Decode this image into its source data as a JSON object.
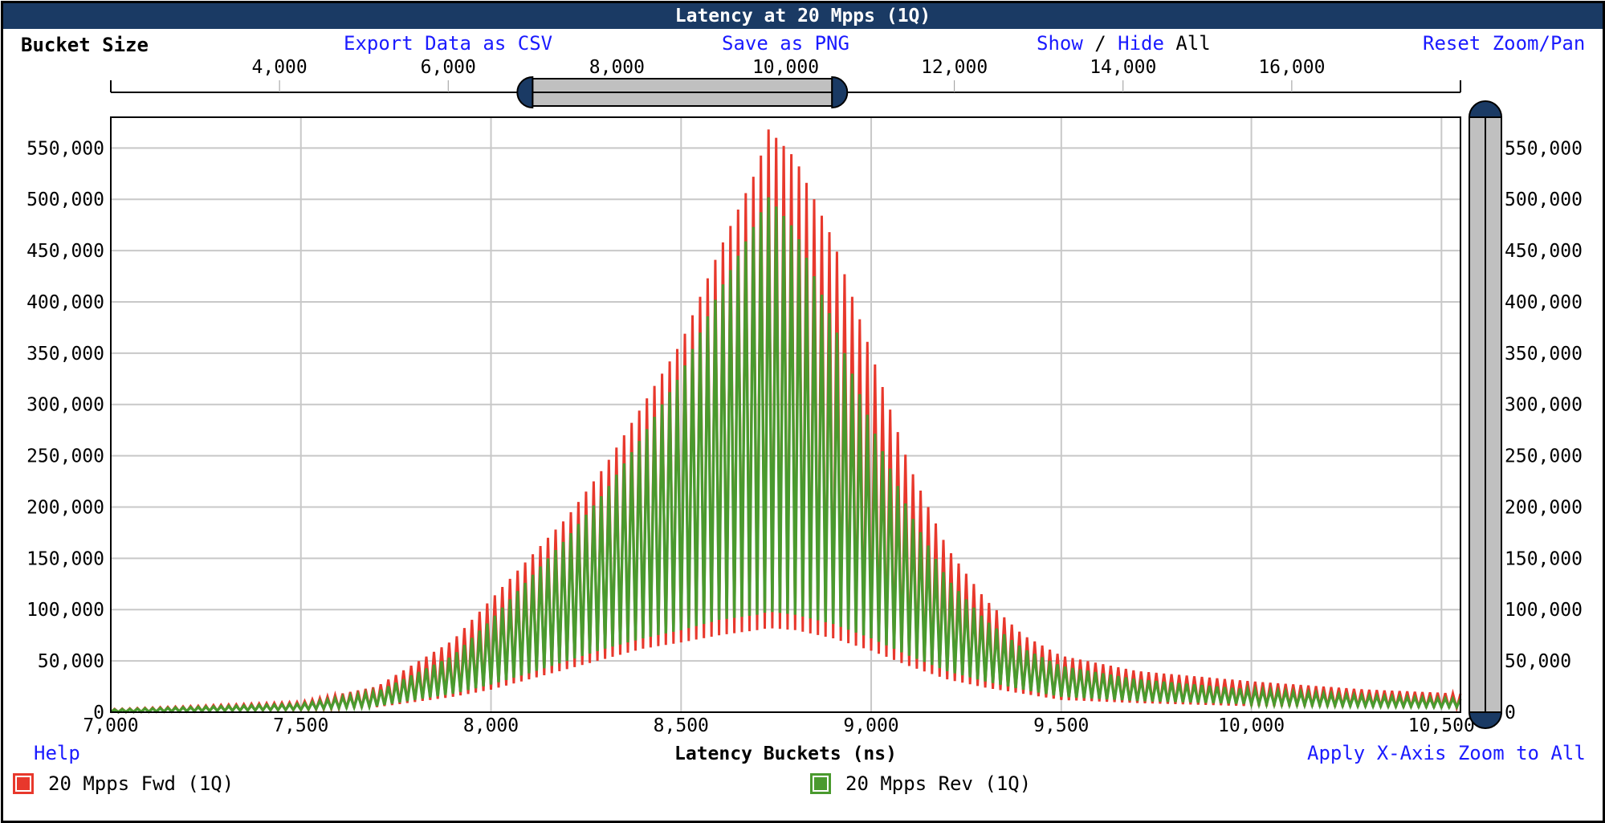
{
  "title": "Latency at 20 Mpps (1Q)",
  "toolbar": {
    "bucket_size_label": "Bucket Size",
    "export_csv": "Export Data as CSV",
    "save_png": "Save as PNG",
    "show": "Show",
    "slash": "/",
    "hide": "Hide",
    "all": "All",
    "reset_zoom": "Reset Zoom/Pan"
  },
  "footer": {
    "help": "Help",
    "apply_zoom": "Apply X-Axis Zoom to All"
  },
  "colors": {
    "title_bg": "#1a3a64",
    "fwd": "#e8382c",
    "rev": "#4a9a2e",
    "grid": "#c8c8c8",
    "handle": "#1a3a64",
    "slider": "#c0c0c0"
  },
  "chart_data": {
    "type": "area",
    "xlabel": "Latency Buckets (ns)",
    "ylabel": "",
    "xlim": [
      7000,
      10550
    ],
    "ylim": [
      0,
      580000
    ],
    "x_ticks": [
      7000,
      7500,
      8000,
      8500,
      9000,
      9500,
      10000,
      10500
    ],
    "x_tick_labels": [
      "7,000",
      "7,500",
      "8,000",
      "8,500",
      "9,000",
      "9,500",
      "10,000",
      "10,500"
    ],
    "y_ticks": [
      0,
      50000,
      100000,
      150000,
      200000,
      250000,
      300000,
      350000,
      400000,
      450000,
      500000,
      550000
    ],
    "y_tick_labels": [
      "0",
      "50,000",
      "100,000",
      "150,000",
      "200,000",
      "250,000",
      "300,000",
      "350,000",
      "400,000",
      "450,000",
      "500,000",
      "550,000"
    ],
    "grid": true,
    "legend_position": "bottom",
    "peak_x": 8730,
    "oscillation_period_ns": 20,
    "series": [
      {
        "name": "20 Mpps Fwd (1Q)",
        "envelope_x": [
          7000,
          7500,
          7700,
          7900,
          8000,
          8100,
          8200,
          8300,
          8400,
          8500,
          8600,
          8700,
          8730,
          8800,
          8900,
          9000,
          9100,
          9200,
          9300,
          9400,
          9500,
          9700,
          10000,
          10300,
          10550
        ],
        "envelope_max": [
          3000,
          10000,
          25000,
          70000,
          110000,
          150000,
          190000,
          240000,
          300000,
          360000,
          450000,
          530000,
          568000,
          540000,
          460000,
          350000,
          240000,
          160000,
          110000,
          75000,
          55000,
          40000,
          30000,
          22000,
          18000
        ],
        "envelope_min": [
          0,
          2000,
          5000,
          15000,
          22000,
          32000,
          42000,
          52000,
          62000,
          68000,
          75000,
          80000,
          82000,
          80000,
          72000,
          60000,
          45000,
          32000,
          24000,
          18000,
          12000,
          9000,
          6000,
          5000,
          4000
        ]
      },
      {
        "name": "20 Mpps Rev (1Q)",
        "envelope_x": [
          7000,
          7500,
          7700,
          7900,
          8000,
          8100,
          8200,
          8300,
          8400,
          8500,
          8600,
          8700,
          8730,
          8800,
          8900,
          9000,
          9100,
          9200,
          9300,
          9400,
          9500,
          9700,
          10000,
          10300,
          10550
        ],
        "envelope_max": [
          2500,
          8000,
          20000,
          55000,
          90000,
          130000,
          170000,
          215000,
          270000,
          330000,
          410000,
          480000,
          502000,
          470000,
          380000,
          280000,
          195000,
          130000,
          90000,
          62000,
          45000,
          32000,
          22000,
          16000,
          13000
        ],
        "envelope_min": [
          0,
          2500,
          6000,
          18000,
          27000,
          38000,
          50000,
          62000,
          72000,
          80000,
          90000,
          95000,
          98000,
          95000,
          86000,
          72000,
          55000,
          40000,
          30000,
          22000,
          15000,
          11000,
          8000,
          6000,
          5000
        ]
      }
    ],
    "overview_axis": {
      "label": "Bucket Size",
      "range": [
        2000,
        18000
      ],
      "ticks": [
        4000,
        6000,
        8000,
        10000,
        12000,
        14000,
        16000
      ],
      "tick_labels": [
        "4,000",
        "6,000",
        "8,000",
        "10,000",
        "12,000",
        "14,000",
        "16,000"
      ],
      "selection": [
        7000,
        10550
      ]
    }
  }
}
